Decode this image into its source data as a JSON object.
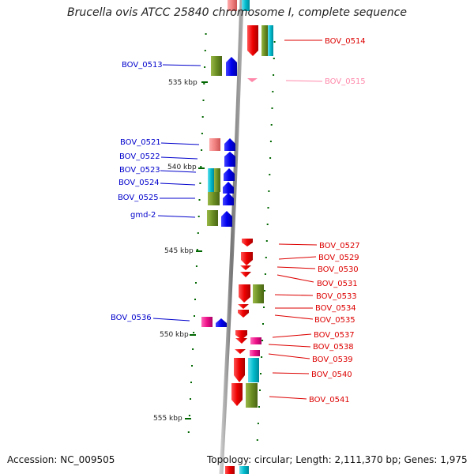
{
  "title": "Brucella ovis ATCC 25840 chromosome I, complete sequence",
  "accession": "Accession: NC_009505",
  "topology": "Topology: circular; Length: 2,111,370 bp; Genes: 1,975",
  "colors": {
    "left_label": "#0000cc",
    "right_label": "#dd0000",
    "faded_label": "#ff88aa",
    "red_gene": "#ee0000",
    "blue_gene": "#0000ee",
    "olive_gene": "#6b8e23",
    "cyan_gene": "#00bbcc",
    "magenta_gene": "#ee1188",
    "salmon_gene": "#f08080",
    "tick": "#006600"
  },
  "ticks": [
    {
      "label": "535 kbp"
    },
    {
      "label": "540 kbp"
    },
    {
      "label": "545 kbp"
    },
    {
      "label": "550 kbp"
    },
    {
      "label": "555 kbp"
    }
  ],
  "left_labels": [
    {
      "text": "BOV_0513"
    },
    {
      "text": "BOV_0521"
    },
    {
      "text": "BOV_0522"
    },
    {
      "text": "BOV_0523"
    },
    {
      "text": "BOV_0524"
    },
    {
      "text": "BOV_0525"
    },
    {
      "text": "gmd-2"
    },
    {
      "text": "BOV_0536"
    }
  ],
  "right_labels": [
    {
      "text": "BOV_0514"
    },
    {
      "text": "BOV_0515"
    },
    {
      "text": "BOV_0527"
    },
    {
      "text": "BOV_0529"
    },
    {
      "text": "BOV_0530"
    },
    {
      "text": "BOV_0531"
    },
    {
      "text": "BOV_0533"
    },
    {
      "text": "BOV_0534"
    },
    {
      "text": "BOV_0535"
    },
    {
      "text": "BOV_0537"
    },
    {
      "text": "BOV_0538"
    },
    {
      "text": "BOV_0539"
    },
    {
      "text": "BOV_0540"
    },
    {
      "text": "BOV_0541"
    }
  ]
}
